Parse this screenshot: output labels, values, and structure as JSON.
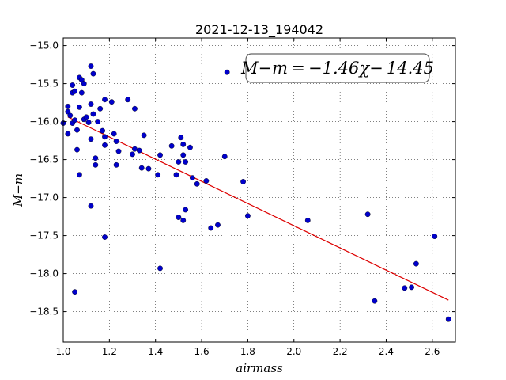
{
  "chart_data": {
    "type": "scatter",
    "title": "2021-12-13_194042",
    "xlabel": "airmass",
    "ylabel": "M−m",
    "xlim": [
      1.0,
      2.7
    ],
    "ylim": [
      -18.9,
      -14.9
    ],
    "y_inverted": true,
    "grid": true,
    "xticks": [
      1.0,
      1.2,
      1.4,
      1.6,
      1.8,
      2.0,
      2.2,
      2.4,
      2.6
    ],
    "xtick_labels": [
      "1.0",
      "1.2",
      "1.4",
      "1.6",
      "1.8",
      "2.0",
      "2.2",
      "2.4",
      "2.6"
    ],
    "yticks": [
      -15.0,
      -15.5,
      -16.0,
      -16.5,
      -17.0,
      -17.5,
      -18.0,
      -18.5
    ],
    "ytick_labels": [
      "−15.0",
      "−15.5",
      "−16.0",
      "−16.5",
      "−17.0",
      "−17.5",
      "−18.0",
      "−18.5"
    ],
    "annotation": "M−m = −1.46χ− 14.45",
    "point_color": "#0000cc",
    "fit_color": "#dd0000",
    "fit": {
      "slope": -1.46,
      "intercept": -14.45,
      "x_start": 1.02,
      "x_end": 2.67
    },
    "points": [
      [
        1.0,
        -16.02
      ],
      [
        1.02,
        -15.8
      ],
      [
        1.02,
        -15.87
      ],
      [
        1.03,
        -15.92
      ],
      [
        1.02,
        -16.16
      ],
      [
        1.04,
        -16.02
      ],
      [
        1.04,
        -15.62
      ],
      [
        1.04,
        -15.52
      ],
      [
        1.05,
        -15.6
      ],
      [
        1.05,
        -15.98
      ],
      [
        1.06,
        -16.11
      ],
      [
        1.06,
        -16.37
      ],
      [
        1.07,
        -15.81
      ],
      [
        1.07,
        -15.42
      ],
      [
        1.08,
        -15.45
      ],
      [
        1.08,
        -15.62
      ],
      [
        1.09,
        -15.5
      ],
      [
        1.09,
        -15.97
      ],
      [
        1.1,
        -15.94
      ],
      [
        1.07,
        -16.7
      ],
      [
        1.11,
        -16.01
      ],
      [
        1.12,
        -15.77
      ],
      [
        1.12,
        -15.27
      ],
      [
        1.13,
        -15.37
      ],
      [
        1.12,
        -16.23
      ],
      [
        1.13,
        -15.9
      ],
      [
        1.14,
        -16.48
      ],
      [
        1.14,
        -16.57
      ],
      [
        1.15,
        -16.0
      ],
      [
        1.16,
        -15.83
      ],
      [
        1.17,
        -16.12
      ],
      [
        1.18,
        -16.31
      ],
      [
        1.18,
        -16.2
      ],
      [
        1.18,
        -15.71
      ],
      [
        1.12,
        -17.11
      ],
      [
        1.18,
        -17.52
      ],
      [
        1.05,
        -18.24
      ],
      [
        1.21,
        -15.74
      ],
      [
        1.22,
        -16.16
      ],
      [
        1.23,
        -16.26
      ],
      [
        1.23,
        -16.57
      ],
      [
        1.24,
        -16.39
      ],
      [
        1.28,
        -15.71
      ],
      [
        1.3,
        -16.43
      ],
      [
        1.31,
        -15.83
      ],
      [
        1.31,
        -16.36
      ],
      [
        1.33,
        -16.38
      ],
      [
        1.34,
        -16.61
      ],
      [
        1.35,
        -16.18
      ],
      [
        1.37,
        -16.62
      ],
      [
        1.41,
        -16.7
      ],
      [
        1.42,
        -16.44
      ],
      [
        1.42,
        -17.93
      ],
      [
        1.47,
        -16.32
      ],
      [
        1.49,
        -16.7
      ],
      [
        1.5,
        -16.53
      ],
      [
        1.51,
        -16.21
      ],
      [
        1.52,
        -16.44
      ],
      [
        1.52,
        -16.3
      ],
      [
        1.53,
        -16.53
      ],
      [
        1.5,
        -17.26
      ],
      [
        1.52,
        -17.3
      ],
      [
        1.53,
        -17.16
      ],
      [
        1.55,
        -16.34
      ],
      [
        1.56,
        -16.74
      ],
      [
        1.58,
        -16.82
      ],
      [
        1.62,
        -16.78
      ],
      [
        1.64,
        -17.4
      ],
      [
        1.67,
        -17.36
      ],
      [
        1.7,
        -16.46
      ],
      [
        1.71,
        -15.35
      ],
      [
        1.78,
        -16.79
      ],
      [
        1.8,
        -17.24
      ],
      [
        2.06,
        -17.3
      ],
      [
        2.32,
        -17.22
      ],
      [
        2.35,
        -18.36
      ],
      [
        2.48,
        -18.19
      ],
      [
        2.51,
        -18.18
      ],
      [
        2.53,
        -17.87
      ],
      [
        2.61,
        -17.51
      ],
      [
        2.67,
        -18.6
      ]
    ]
  }
}
